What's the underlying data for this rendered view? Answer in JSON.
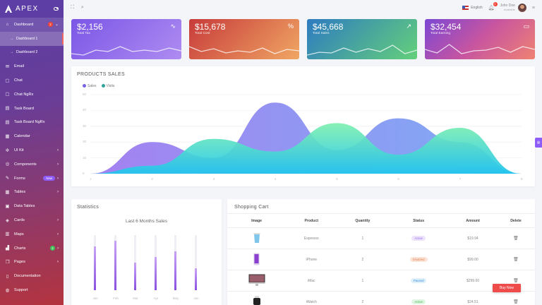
{
  "app": {
    "brand": "APEX"
  },
  "sidebar": {
    "items": [
      {
        "label": "Dashboard",
        "icon": "home-icon",
        "badge": "2",
        "badge_color": "#f24236",
        "chevron": true,
        "open": true
      },
      {
        "label": "Dashboard 1",
        "sub": true,
        "active": true
      },
      {
        "label": "Dashboard 2",
        "sub": true
      },
      {
        "label": "Email",
        "icon": "mail-icon"
      },
      {
        "label": "Chat",
        "icon": "chat-icon"
      },
      {
        "label": "Chat NgRx",
        "icon": "chat-icon"
      },
      {
        "label": "Task Board",
        "icon": "clipboard-icon"
      },
      {
        "label": "Task Board NgRx",
        "icon": "clipboard-icon"
      },
      {
        "label": "Calendar",
        "icon": "calendar-icon"
      },
      {
        "label": "UI Kit",
        "icon": "gear-icon",
        "chevron": true
      },
      {
        "label": "Components",
        "icon": "component-icon",
        "chevron": true
      },
      {
        "label": "Forms",
        "icon": "edit-icon",
        "badge": "New",
        "badge_color": "#8e5cf7",
        "chevron": true
      },
      {
        "label": "Tables",
        "icon": "grid-icon",
        "chevron": true
      },
      {
        "label": "Data Tables",
        "icon": "table-icon"
      },
      {
        "label": "Cards",
        "icon": "layers-icon",
        "chevron": true
      },
      {
        "label": "Maps",
        "icon": "map-icon",
        "chevron": true
      },
      {
        "label": "Charts",
        "icon": "bar-chart-icon",
        "badge": "2",
        "badge_color": "#40c057",
        "chevron": true
      },
      {
        "label": "Pages",
        "icon": "copy-icon",
        "chevron": true
      },
      {
        "label": "Documentation",
        "icon": "book-icon"
      },
      {
        "label": "Support",
        "icon": "life-buoy-icon"
      }
    ]
  },
  "topbar": {
    "language": "English",
    "notifications": "4",
    "user_name": "John Doe",
    "user_status": "Available"
  },
  "stat_cards": [
    {
      "value": "$2,156",
      "label": "Total Tax",
      "icon": "activity-icon",
      "glyph": "∿",
      "spark": [
        22,
        24,
        17,
        19,
        12,
        19,
        17,
        19,
        14,
        18
      ]
    },
    {
      "value": "$15,678",
      "label": "Total Cost",
      "icon": "percent-icon",
      "glyph": "%",
      "spark": [
        12,
        19,
        15,
        21,
        18,
        20,
        14,
        22,
        16,
        18
      ]
    },
    {
      "value": "$45,668",
      "label": "Total Sales",
      "icon": "trending-up-icon",
      "glyph": "↗",
      "spark": [
        24,
        20,
        21,
        14,
        20,
        15,
        19,
        10,
        22,
        17
      ]
    },
    {
      "value": "$32,454",
      "label": "Total Earning",
      "icon": "credit-card-icon",
      "glyph": "▭",
      "spark": [
        16,
        21,
        9,
        22,
        18,
        17,
        13,
        20,
        12,
        16
      ]
    }
  ],
  "sales_panel": {
    "title": "PRODUCTS SALES",
    "legend": [
      {
        "label": "Sales",
        "color": "#7b61e8"
      },
      {
        "label": "Visits",
        "color": "#2fa39a"
      }
    ]
  },
  "chart_data": [
    {
      "type": "area",
      "title": "PRODUCTS SALES",
      "x": [
        1,
        2,
        3,
        4,
        5,
        6,
        7,
        8
      ],
      "series": [
        {
          "name": "Sales",
          "values": [
            0,
            20,
            10,
            45,
            15,
            35,
            20,
            0
          ]
        },
        {
          "name": "Visits",
          "values": [
            0,
            5,
            22,
            14,
            32,
            12,
            29,
            0
          ]
        }
      ],
      "yticks": [
        0,
        10,
        20,
        30,
        40,
        50
      ],
      "ylim": [
        0,
        50
      ],
      "grid": true,
      "legend_position": "top-left"
    },
    {
      "type": "bar",
      "title": "Last 6 Months Sales",
      "categories": [
        "Jan",
        "Feb",
        "Mar",
        "Apr",
        "May",
        "Jun"
      ],
      "values": [
        80,
        90,
        50,
        60,
        70,
        40
      ],
      "ylim": [
        0,
        100
      ]
    }
  ],
  "statistics": {
    "title": "Statistics",
    "subtitle": "Last 6 Months Sales",
    "months": [
      "Jan",
      "Feb",
      "Mar",
      "Apr",
      "May",
      "Jun"
    ]
  },
  "cart": {
    "title": "Shopping Cart",
    "columns": [
      "Image",
      "Product",
      "Quantity",
      "Status",
      "Amount",
      "Delete"
    ],
    "rows": [
      {
        "product": "Espresso",
        "quantity": "1",
        "status": "Active",
        "amount": "$19.94",
        "img": "coffee-cup"
      },
      {
        "product": "iPhone",
        "quantity": "2",
        "status": "Disabled",
        "amount": "$99.00",
        "img": "phone"
      },
      {
        "product": "iMac",
        "quantity": "1",
        "status": "Paused",
        "amount": "$299.00",
        "img": "monitor"
      },
      {
        "product": "iWatch",
        "quantity": "2",
        "status": "Active",
        "amount": "$24.51",
        "img": "watch"
      }
    ],
    "buy_now": "Buy Now"
  }
}
